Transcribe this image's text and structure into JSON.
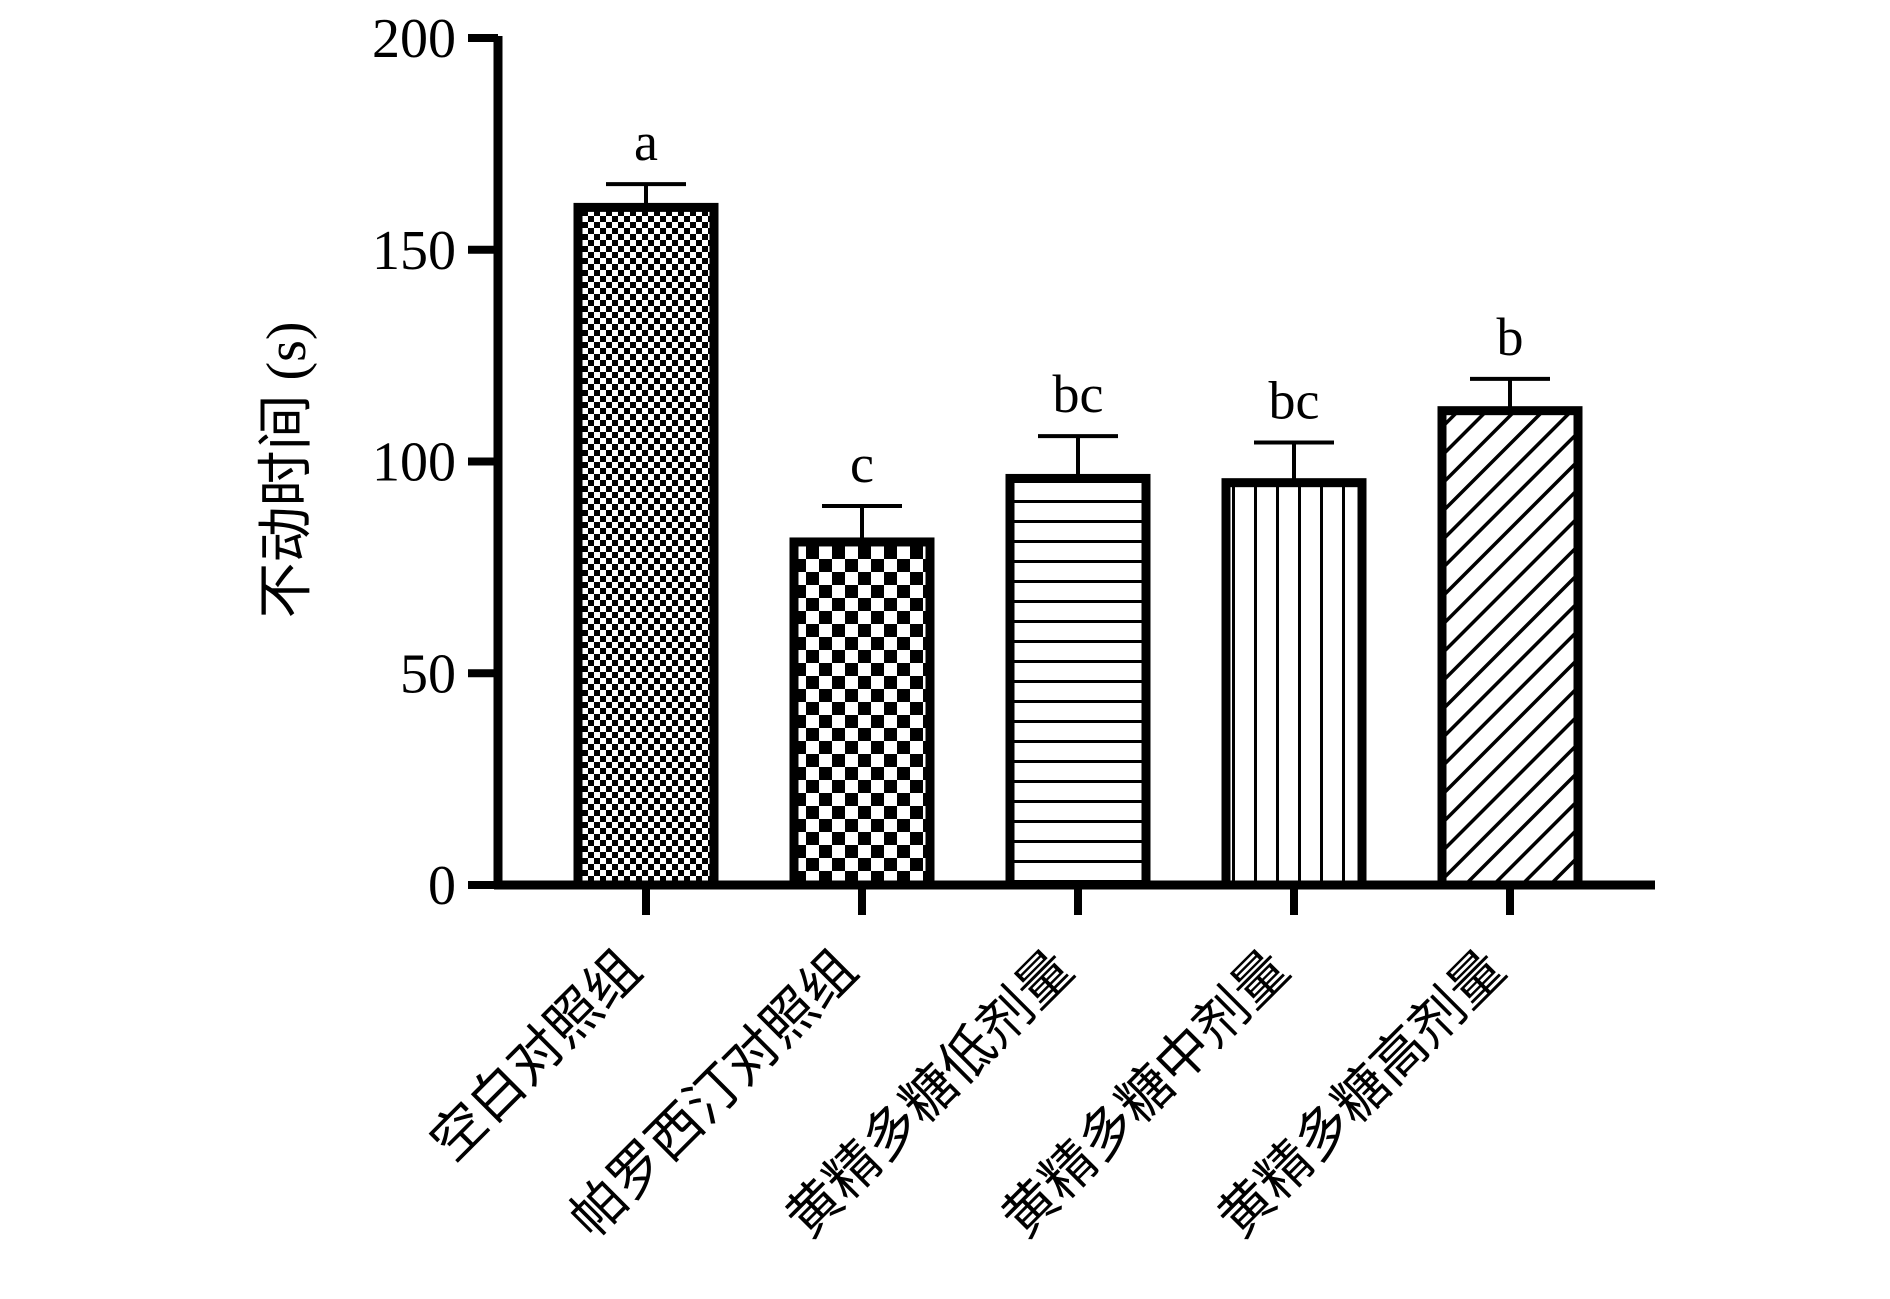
{
  "chart_data": {
    "type": "bar",
    "title": "",
    "xlabel": "",
    "ylabel": "不动时间 (s)",
    "ylim": [
      0,
      200
    ],
    "yticks": [
      0,
      50,
      100,
      150,
      200
    ],
    "grid": false,
    "categories": [
      "空白对照组",
      "帕罗西汀对照组",
      "黄精多糖低剂量",
      "黄精多糖中剂量",
      "黄精多糖高剂量"
    ],
    "values": [
      160,
      81,
      96,
      95,
      112
    ],
    "error": [
      5.5,
      8.5,
      10,
      9.5,
      7.5
    ],
    "significance": [
      "a",
      "c",
      "bc",
      "bc",
      "b"
    ],
    "patterns": [
      "fine-checker",
      "coarse-checker",
      "horizontal-lines",
      "vertical-lines",
      "diagonal-hatch"
    ],
    "bar_edge_color": "#000000",
    "bar_fill_color": "#ffffff"
  }
}
